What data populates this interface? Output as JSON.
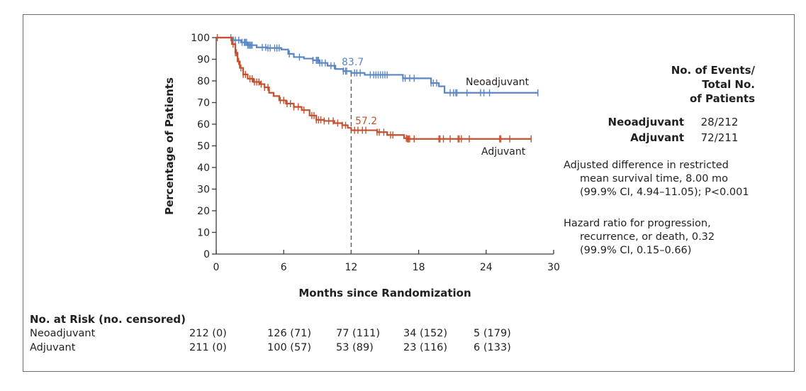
{
  "chart_data": {
    "type": "line",
    "subtype": "kaplan-meier",
    "title": "",
    "xlabel": "Months since Randomization",
    "ylabel": "Percentage of Patients",
    "xlim": [
      0,
      30
    ],
    "ylim": [
      0,
      100
    ],
    "xticks": [
      "0",
      "6",
      "12",
      "18",
      "24",
      "30"
    ],
    "yticks": [
      "0",
      "10",
      "20",
      "30",
      "40",
      "50",
      "60",
      "70",
      "80",
      "90",
      "100"
    ],
    "grid": false,
    "reference_line": {
      "x": 12,
      "style": "dashed"
    },
    "series": [
      {
        "name": "Neoadjuvant",
        "color": "#5b86c4",
        "label_at_12mo": "83.7",
        "steps": [
          [
            0,
            100
          ],
          [
            1.2,
            100
          ],
          [
            1.5,
            98.8
          ],
          [
            2.2,
            97.8
          ],
          [
            2.8,
            96.5
          ],
          [
            3.6,
            95.5
          ],
          [
            4.5,
            95.2
          ],
          [
            5.8,
            94.5
          ],
          [
            6.4,
            92.5
          ],
          [
            6.9,
            91
          ],
          [
            7.8,
            90.3
          ],
          [
            8.6,
            89.5
          ],
          [
            9.2,
            88.3
          ],
          [
            9.9,
            87
          ],
          [
            10.6,
            85.5
          ],
          [
            11.3,
            84.5
          ],
          [
            12,
            83.7
          ],
          [
            13.2,
            82.8
          ],
          [
            16.6,
            81.2
          ],
          [
            19.1,
            79
          ],
          [
            19.8,
            77.5
          ],
          [
            20.3,
            74.5
          ],
          [
            28.6,
            74.5
          ]
        ],
        "censor_x": [
          1.3,
          1.5,
          1.7,
          2.0,
          2.3,
          2.5,
          2.6,
          2.7,
          2.8,
          2.9,
          3.0,
          3.1,
          3.2,
          4.1,
          4.4,
          4.6,
          4.8,
          5.2,
          5.4,
          5.6,
          6.5,
          7.4,
          8.6,
          8.9,
          9.0,
          9.1,
          9.2,
          9.4,
          9.7,
          10.2,
          10.5,
          11.3,
          11.5,
          11.6,
          12.3,
          12.5,
          12.8,
          13.7,
          14.0,
          14.2,
          14.4,
          14.6,
          14.8,
          15.0,
          15.2,
          16.6,
          16.8,
          17.2,
          17.6,
          19.1,
          19.3,
          19.6,
          20.8,
          21.1,
          21.3,
          21.4,
          22.3,
          23.5,
          23.8,
          24.3,
          28.6
        ]
      },
      {
        "name": "Adjuvant",
        "color": "#c4502f",
        "label_at_12mo": "57.2",
        "steps": [
          [
            0,
            100
          ],
          [
            1.0,
            100
          ],
          [
            1.4,
            97
          ],
          [
            1.7,
            93
          ],
          [
            1.9,
            89
          ],
          [
            2.1,
            86
          ],
          [
            2.4,
            83
          ],
          [
            2.8,
            81
          ],
          [
            3.3,
            79.5
          ],
          [
            3.9,
            78.5
          ],
          [
            4.3,
            77
          ],
          [
            4.7,
            74.5
          ],
          [
            5.1,
            73
          ],
          [
            5.6,
            71
          ],
          [
            6.2,
            69.5
          ],
          [
            6.9,
            68
          ],
          [
            7.6,
            66.5
          ],
          [
            8.3,
            64
          ],
          [
            8.9,
            62
          ],
          [
            9.6,
            61.5
          ],
          [
            10.5,
            60.5
          ],
          [
            11.2,
            59.5
          ],
          [
            11.7,
            58.3
          ],
          [
            12,
            57.2
          ],
          [
            14.3,
            56.3
          ],
          [
            15.2,
            55
          ],
          [
            16.7,
            53.5
          ],
          [
            17,
            53.2
          ],
          [
            28,
            53.2
          ]
        ],
        "censor_x": [
          0.1,
          1.5,
          1.7,
          1.8,
          2.0,
          2.2,
          2.4,
          2.6,
          3.0,
          3.2,
          3.4,
          3.6,
          3.8,
          4.0,
          4.3,
          4.6,
          5.7,
          6.0,
          6.3,
          6.6,
          6.9,
          7.3,
          7.8,
          8.5,
          8.7,
          8.9,
          9.1,
          9.3,
          9.6,
          10.0,
          10.4,
          10.8,
          11.2,
          11.5,
          12.3,
          12.6,
          13.0,
          13.3,
          14.3,
          14.5,
          14.9,
          15.5,
          15.7,
          16.9,
          17.0,
          17.1,
          17.2,
          17.6,
          19.8,
          19.9,
          20.2,
          20.8,
          21.5,
          21.6,
          21.8,
          22.5,
          25.2,
          25.3,
          26.1,
          28
        ]
      }
    ],
    "series_labels": [
      "Neoadjuvant",
      "Adjuvant"
    ]
  },
  "events_table": {
    "header_lines": [
      "No. of Events/",
      "Total No.",
      "of Patients"
    ],
    "rows": [
      {
        "group": "Neoadjuvant",
        "value": "28/212"
      },
      {
        "group": "Adjuvant",
        "value": "72/211"
      }
    ]
  },
  "stats": {
    "rmst": [
      "Adjusted difference in restricted",
      "mean survival time, 8.00 mo",
      "(99.9% CI, 4.94–11.05); P<0.001"
    ],
    "hazard": [
      "Hazard ratio for progression,",
      "recurrence, or death, 0.32",
      "(99.9% CI, 0.15–0.66)"
    ]
  },
  "risk_table": {
    "title": "No. at Risk (no. censored)",
    "rows": [
      {
        "group": "Neoadjuvant",
        "values": [
          "212 (0)",
          "126 (71)",
          "77 (111)",
          "34 (152)",
          "5 (179)"
        ]
      },
      {
        "group": "Adjuvant",
        "values": [
          "211 (0)",
          "100 (57)",
          "53 (89)",
          "23 (116)",
          "6 (133)"
        ]
      }
    ]
  }
}
